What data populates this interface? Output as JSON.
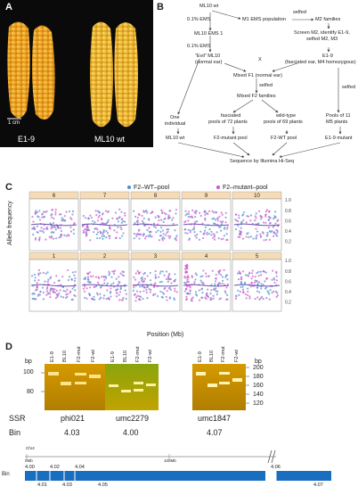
{
  "panels": {
    "a": "A",
    "b": "B",
    "c": "C",
    "d": "D"
  },
  "photo": {
    "scale_label": "1 cm",
    "left_label": "E1-9",
    "right_label": "ML10 wt"
  },
  "flowchart": {
    "ml10_wt": "ML10 wt",
    "ems1": "0.1% EMS",
    "ml10_ems1": "ML10 EMS 1",
    "ems2": "0.1% EMS",
    "evil1": "“Evil” ML10",
    "evil2": "(normal ear)",
    "m1_pop": "M1 EMS population",
    "m2_fam": "M2 families",
    "selfed_top": "selfed",
    "screen1": "Screen M2, identify E1-9,",
    "screen2": "selfed M2, M3",
    "x": "X",
    "e19": "E1-9",
    "e19_desc": "(fasciated ear, M4 homozygous)",
    "mixed_f1": "Mixed F1 (normal ear)",
    "selfed_mid": "selfed",
    "mixed_f2": "Mixed F2 families",
    "selfed_right": "selfed",
    "one1": "One",
    "one2": "individual",
    "fas1": "fasciated",
    "fas2": "pools of 72 plants",
    "wild1": "wild-type",
    "wild2": "pools of 69 plants",
    "pools1": "Pools of 11",
    "pools2": "M5 plants",
    "ml10_wt_b": "ML10 wt",
    "f2_mut": "F2-mutant pool",
    "f2_wt": "F2-WT pool",
    "e19_mut": "E1-9 mutant",
    "seq": "Sequence by Illumina Hi-Seq"
  },
  "scatter_panel": {
    "legend": [
      "F2–WT–pool",
      "F2–mutant–pool"
    ],
    "ylabel": "Allele frequency",
    "xlabel": "Position (Mb)",
    "top_chromosomes": [
      "6",
      "7",
      "8",
      "9",
      "10"
    ],
    "bottom_chromosomes": [
      "1",
      "2",
      "3",
      "4",
      "5"
    ],
    "y_ticks": [
      "1.0",
      "0.8",
      "0.6",
      "0.4",
      "0.2"
    ]
  },
  "colors": {
    "wt": "#4f8fd0",
    "mut": "#cf55c9",
    "strip": "#f5dcb6",
    "gel": "#c49000",
    "bin_bar": "#1a6ec0"
  },
  "gel": {
    "bp_left": "bp",
    "ladder_left": [
      "100",
      "80"
    ],
    "bp_right": "bp",
    "ladder_right": [
      "200",
      "180",
      "160",
      "140",
      "120"
    ],
    "gel1_lanes": [
      "E1-9",
      "BL10",
      "F2-mut",
      "F2-wt"
    ],
    "gel2_lanes": [
      "E1-9",
      "BL10",
      "F2-mut",
      "F2-wt"
    ],
    "gel3_lanes": [
      "E1-9",
      "BL10",
      "F2-mut",
      "F2-wt"
    ],
    "ssr_label": "SSR",
    "ssr": [
      "phi021",
      "umc2279",
      "umc1847"
    ],
    "bin_label": "Bin",
    "bins": [
      "4.03",
      "4.00",
      "4.07"
    ]
  },
  "chr_map": {
    "chr": "Chr4",
    "start": "0Mb",
    "mid": "100Mb",
    "bin_label": "Bin",
    "bins_top": [
      "4.00",
      "4.02",
      "4.04",
      "4.06"
    ],
    "bins_bottom": [
      "4.01",
      "4.03",
      "4.05",
      "4.07"
    ]
  }
}
